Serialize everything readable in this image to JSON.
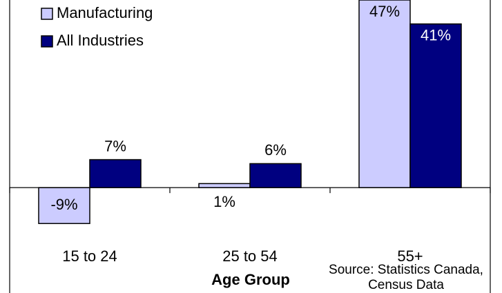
{
  "chart_data": {
    "type": "bar",
    "categories": [
      "15 to 24",
      "25 to 54",
      "55+"
    ],
    "series": [
      {
        "name": "Manufacturing",
        "color": "#ccccff",
        "values": [
          -9,
          1,
          47
        ],
        "value_labels": [
          "-9%",
          "1%",
          "47%"
        ]
      },
      {
        "name": "All Industries",
        "color": "#000080",
        "values": [
          7,
          6,
          41
        ],
        "value_labels": [
          "7%",
          "6%",
          "41%"
        ]
      }
    ],
    "ylim": [
      -10,
      47
    ],
    "x_label": "Age Group",
    "annotation": [
      "Source: Statistics Canada,",
      "Census Data"
    ]
  }
}
